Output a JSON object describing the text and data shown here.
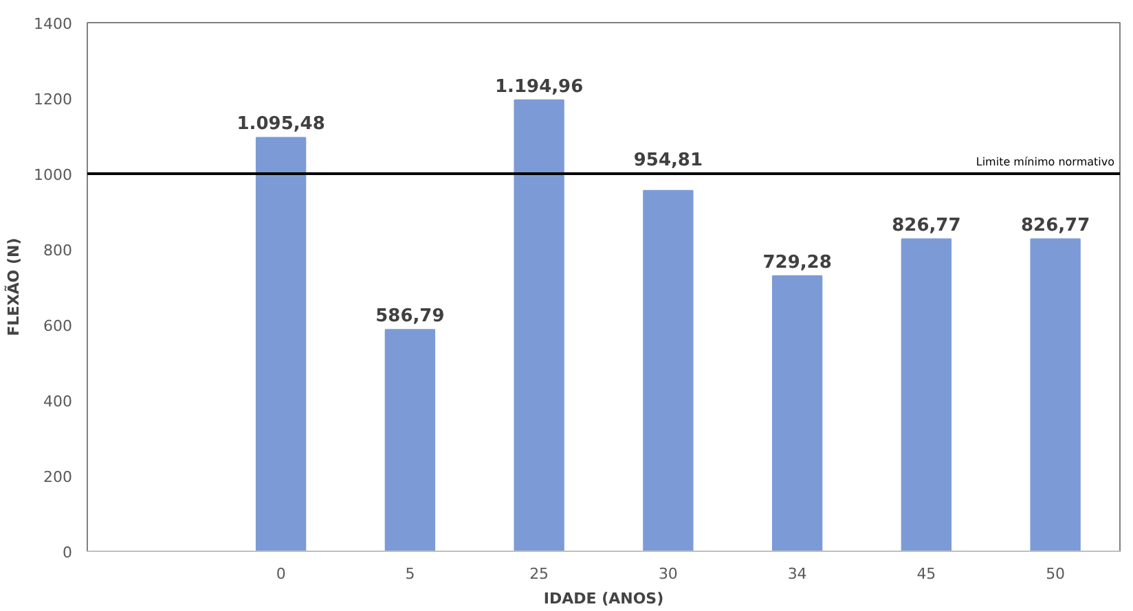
{
  "chart_data": {
    "type": "bar",
    "xlabel": "IDADE (ANOS)",
    "ylabel": "FLEXÃO (N)",
    "categories": [
      null,
      "0",
      "5",
      "25",
      "30",
      "34",
      "45",
      "50"
    ],
    "values": [
      null,
      1095.48,
      586.79,
      1194.96,
      954.81,
      729.28,
      826.77,
      826.77
    ],
    "value_labels": [
      null,
      "1.095,48",
      "586,79",
      "1.194,96",
      "954,81",
      "729,28",
      "826,77",
      "826,77"
    ],
    "color": "#7c9bd6",
    "ylim": [
      0,
      1400
    ],
    "yticks": [
      0,
      200,
      400,
      600,
      800,
      1000,
      1200,
      1400
    ],
    "ref_lines": [
      {
        "axis": "y",
        "value": 1000,
        "label": "Limite mínimo normativo",
        "color": "#000000"
      }
    ],
    "grid": false
  }
}
